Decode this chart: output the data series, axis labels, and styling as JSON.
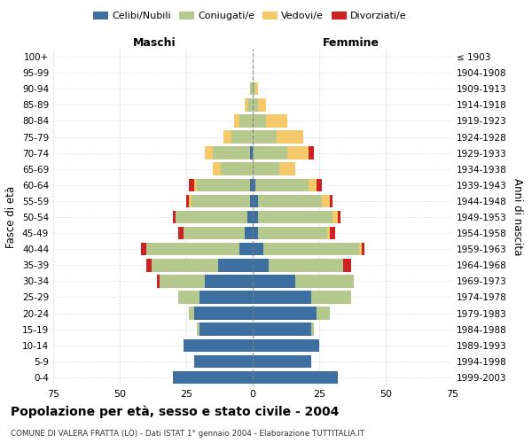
{
  "age_groups": [
    "0-4",
    "5-9",
    "10-14",
    "15-19",
    "20-24",
    "25-29",
    "30-34",
    "35-39",
    "40-44",
    "45-49",
    "50-54",
    "55-59",
    "60-64",
    "65-69",
    "70-74",
    "75-79",
    "80-84",
    "85-89",
    "90-94",
    "95-99",
    "100+"
  ],
  "birth_years": [
    "1999-2003",
    "1994-1998",
    "1989-1993",
    "1984-1988",
    "1979-1983",
    "1974-1978",
    "1969-1973",
    "1964-1968",
    "1959-1963",
    "1954-1958",
    "1949-1953",
    "1944-1948",
    "1939-1943",
    "1934-1938",
    "1929-1933",
    "1924-1928",
    "1919-1923",
    "1914-1918",
    "1909-1913",
    "1904-1908",
    "≤ 1903"
  ],
  "male": {
    "celibi": [
      30,
      22,
      26,
      20,
      22,
      20,
      18,
      13,
      5,
      3,
      2,
      1,
      1,
      0,
      1,
      0,
      0,
      0,
      0,
      0,
      0
    ],
    "coniugati": [
      0,
      0,
      0,
      1,
      2,
      8,
      17,
      25,
      35,
      23,
      27,
      22,
      20,
      12,
      14,
      8,
      5,
      2,
      1,
      0,
      0
    ],
    "vedovi": [
      0,
      0,
      0,
      0,
      0,
      0,
      0,
      0,
      0,
      0,
      0,
      1,
      1,
      3,
      3,
      3,
      2,
      1,
      0,
      0,
      0
    ],
    "divorziati": [
      0,
      0,
      0,
      0,
      0,
      0,
      1,
      2,
      2,
      2,
      1,
      1,
      2,
      0,
      0,
      0,
      0,
      0,
      0,
      0,
      0
    ]
  },
  "female": {
    "nubili": [
      32,
      22,
      25,
      22,
      24,
      22,
      16,
      6,
      4,
      2,
      2,
      2,
      1,
      0,
      0,
      0,
      0,
      0,
      0,
      0,
      0
    ],
    "coniugate": [
      0,
      0,
      0,
      1,
      5,
      15,
      22,
      28,
      36,
      26,
      28,
      24,
      20,
      10,
      13,
      9,
      5,
      2,
      1,
      0,
      0
    ],
    "vedove": [
      0,
      0,
      0,
      0,
      0,
      0,
      0,
      0,
      1,
      1,
      2,
      3,
      3,
      6,
      8,
      10,
      8,
      3,
      1,
      0,
      0
    ],
    "divorziate": [
      0,
      0,
      0,
      0,
      0,
      0,
      0,
      3,
      1,
      2,
      1,
      1,
      2,
      0,
      2,
      0,
      0,
      0,
      0,
      0,
      0
    ]
  },
  "colors": {
    "celibi": "#3d6fa0",
    "coniugati": "#b5c98e",
    "vedovi": "#f5c96a",
    "divorziati": "#cc2222"
  },
  "xlim": 75,
  "title": "Popolazione per età, sesso e stato civile - 2004",
  "subtitle": "COMUNE DI VALERA FRATTA (LO) - Dati ISTAT 1° gennaio 2004 - Elaborazione TUTTITALIA.IT",
  "ylabel": "Fasce di età",
  "ylabel_right": "Anni di nascita",
  "legend_labels": [
    "Celibi/Nubili",
    "Coniugati/e",
    "Vedovi/e",
    "Divorziati/e"
  ],
  "maschi_label": "Maschi",
  "femmine_label": "Femmine"
}
